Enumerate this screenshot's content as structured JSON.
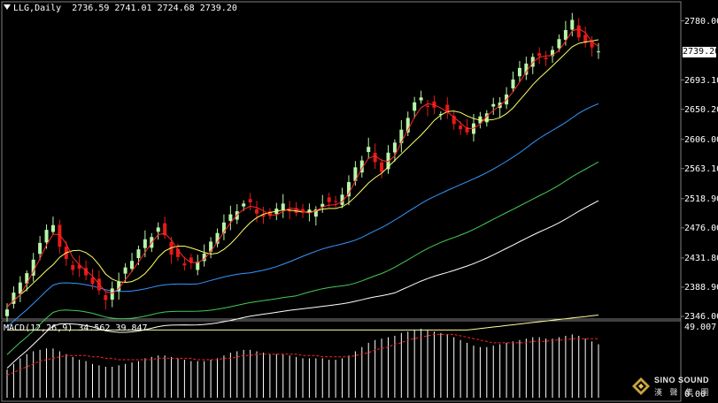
{
  "header": {
    "symbol": "LLG,Daily",
    "ohlc": "2736.59 2741.01 2724.68 2739.20"
  },
  "current_price": "2739.20",
  "price_axis": [
    "2780.00",
    "2693.10",
    "2650.20",
    "2606.00",
    "2563.10",
    "2518.90",
    "2476.00",
    "2431.80",
    "2388.90",
    "2346.00"
  ],
  "macd": {
    "label": "MACD(12,26,9) 34.562 39.847",
    "axis_top": "49.007",
    "axis_bottom": "0.00"
  },
  "logo": {
    "name": "SINO SOUND",
    "chinese": "漢 聲 集 團"
  },
  "colors": {
    "bull_candle": "#b7f5a8",
    "bear_candle": "#e8191a",
    "ma_red": "#ff2a2a",
    "ma_yellow": "#ffff66",
    "ma_blue": "#3399ff",
    "ma_green": "#44cc55",
    "ma_white": "#ffffff",
    "ma_yellow_slow": "#ffff99",
    "macd_hist": "#ffffff",
    "macd_signal": "#ff2222"
  },
  "chart_data": {
    "type": "candlestick",
    "ylim": [
      2346.0,
      2795.0
    ],
    "closes": [
      2360,
      2378,
      2395,
      2410,
      2432,
      2450,
      2470,
      2480,
      2448,
      2430,
      2420,
      2415,
      2405,
      2395,
      2380,
      2372,
      2388,
      2400,
      2412,
      2425,
      2440,
      2455,
      2468,
      2475,
      2460,
      2440,
      2430,
      2425,
      2420,
      2430,
      2440,
      2455,
      2470,
      2485,
      2495,
      2505,
      2510,
      2508,
      2500,
      2495,
      2490,
      2500,
      2510,
      2505,
      2498,
      2495,
      2500,
      2508,
      2512,
      2508,
      2510,
      2525,
      2545,
      2565,
      2580,
      2590,
      2575,
      2560,
      2585,
      2600,
      2620,
      2640,
      2655,
      2662,
      2658,
      2650,
      2648,
      2640,
      2628,
      2622,
      2615,
      2630,
      2640,
      2650,
      2655,
      2662,
      2675,
      2690,
      2705,
      2720,
      2732,
      2728,
      2725,
      2735,
      2750,
      2765,
      2780,
      2760,
      2748,
      2740,
      2739
    ],
    "macd_hist": [
      20,
      24,
      28,
      31,
      33,
      34,
      35,
      35,
      33,
      31,
      29,
      27,
      26,
      24,
      23,
      22,
      22,
      23,
      24,
      25,
      26,
      28,
      29,
      30,
      30,
      29,
      28,
      27,
      26,
      26,
      26,
      27,
      28,
      30,
      32,
      33,
      34,
      34,
      33,
      32,
      31,
      31,
      31,
      30,
      29,
      28,
      28,
      28,
      28,
      27,
      27,
      28,
      30,
      33,
      36,
      39,
      41,
      42,
      43,
      44,
      46,
      47,
      48,
      49,
      48,
      47,
      46,
      45,
      43,
      41,
      39,
      37,
      36,
      36,
      37,
      38,
      39,
      40,
      41,
      42,
      43,
      43,
      42,
      42,
      43,
      44,
      45,
      44,
      42,
      40,
      38
    ],
    "macd_signal": [
      16,
      18,
      20,
      22,
      24,
      26,
      27,
      28,
      29,
      30,
      30,
      30,
      30,
      29,
      29,
      28,
      28,
      27,
      27,
      27,
      27,
      27,
      27,
      28,
      28,
      28,
      28,
      28,
      28,
      27,
      27,
      27,
      27,
      28,
      28,
      29,
      30,
      30,
      31,
      31,
      31,
      31,
      31,
      31,
      31,
      30,
      30,
      30,
      29,
      29,
      29,
      29,
      29,
      30,
      31,
      32,
      34,
      35,
      36,
      38,
      39,
      41,
      42,
      43,
      44,
      45,
      45,
      45,
      45,
      44,
      43,
      42,
      41,
      40,
      39,
      39,
      39,
      39,
      39,
      39,
      40,
      40,
      40,
      41,
      41,
      41,
      42,
      42,
      42,
      42,
      42
    ]
  }
}
